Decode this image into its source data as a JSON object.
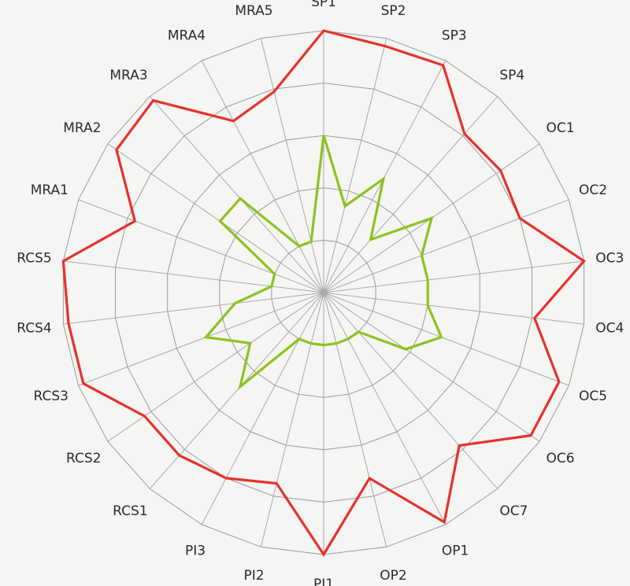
{
  "chart_data": {
    "type": "radar",
    "categories": [
      "SP1",
      "SP2",
      "SP3",
      "SP4",
      "OC1",
      "OC2",
      "OC3",
      "OC4",
      "OC5",
      "OC6",
      "OC7",
      "OP1",
      "OP2",
      "PI1",
      "PI2",
      "PI3",
      "RCS1",
      "RCS2",
      "RCS3",
      "RCS4",
      "RCS5",
      "MRA1",
      "MRA2",
      "MRA3",
      "MRA4",
      "MRA5"
    ],
    "rlim": [
      0,
      5
    ],
    "rings": 5,
    "grid": true,
    "series": [
      {
        "color": "#e8312a",
        "values": [
          5,
          4.85,
          4.9,
          4.05,
          4.1,
          4.0,
          5.0,
          4.05,
          4.8,
          4.8,
          3.9,
          4.95,
          3.65,
          5.0,
          3.75,
          4.0,
          4.15,
          4.15,
          4.9,
          4.9,
          5.0,
          3.85,
          4.8,
          4.9,
          3.7,
          3.95
        ]
      },
      {
        "color": "#8dc21f",
        "values": [
          3.0,
          1.7,
          2.45,
          1.35,
          2.5,
          2.0,
          2.0,
          2.0,
          2.4,
          1.9,
          1.0,
          1.0,
          1.0,
          1.0,
          1.0,
          1.0,
          2.4,
          1.7,
          2.4,
          1.7,
          1.0,
          1.0,
          2.4,
          2.4,
          1.0,
          1.0
        ]
      }
    ]
  }
}
